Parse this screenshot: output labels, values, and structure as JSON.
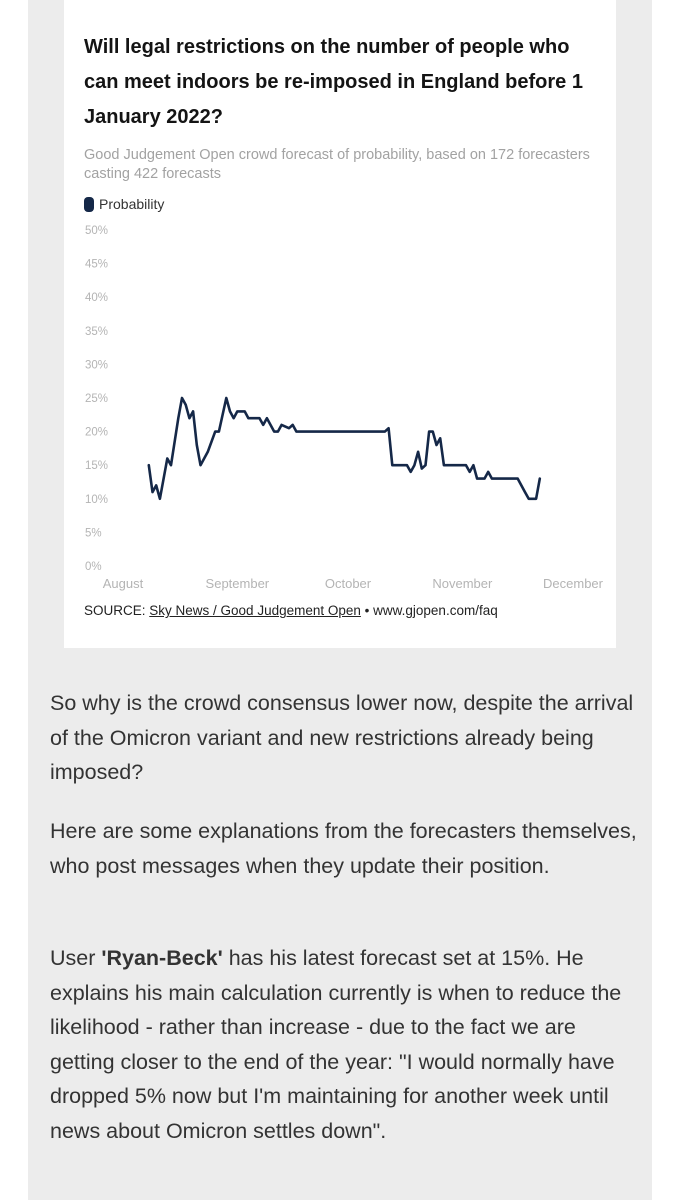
{
  "colors": {
    "line": "#152848",
    "axis_text": "#b4b4b4",
    "page_bg": "#ececec",
    "card_bg": "#ffffff",
    "body_text": "#333333"
  },
  "chart": {
    "title": "Will legal restrictions on the number of people who can meet indoors be re-imposed in England before 1 January 2022?",
    "subtitle": "Good Judgement Open crowd forecast of probability, based on 172 forecasters casting 422 forecasts",
    "source_label": "SOURCE:",
    "source_link": "Sky News / Good Judgement Open",
    "source_rest": "• www.gjopen.com/faq"
  },
  "chart_data": {
    "type": "line",
    "title": "Will legal restrictions on the number of people who can meet indoors be re-imposed in England before 1 January 2022?",
    "subtitle": "Good Judgement Open crowd forecast of probability, based on 172 forecasters casting 422 forecasts",
    "xlabel": "",
    "ylabel": "",
    "ylim": [
      0,
      50
    ],
    "yticks": [
      "0%",
      "5%",
      "10%",
      "15%",
      "20%",
      "25%",
      "30%",
      "35%",
      "40%",
      "45%",
      "50%"
    ],
    "xticks": [
      "August",
      "September",
      "October",
      "November",
      "December"
    ],
    "xlim": [
      "2021-08-01",
      "2021-12-01"
    ],
    "grid": false,
    "legend": "top-left",
    "series": [
      {
        "name": "Probability",
        "points": [
          [
            "2021-08-08",
            15
          ],
          [
            "2021-08-09",
            11
          ],
          [
            "2021-08-10",
            12
          ],
          [
            "2021-08-11",
            10
          ],
          [
            "2021-08-13",
            16
          ],
          [
            "2021-08-14",
            15
          ],
          [
            "2021-08-16",
            22
          ],
          [
            "2021-08-17",
            25
          ],
          [
            "2021-08-18",
            24
          ],
          [
            "2021-08-19",
            22
          ],
          [
            "2021-08-20",
            23
          ],
          [
            "2021-08-21",
            18
          ],
          [
            "2021-08-22",
            15
          ],
          [
            "2021-08-24",
            17
          ],
          [
            "2021-08-26",
            20
          ],
          [
            "2021-08-27",
            20
          ],
          [
            "2021-08-29",
            25
          ],
          [
            "2021-08-30",
            23
          ],
          [
            "2021-08-31",
            22
          ],
          [
            "2021-09-01",
            23
          ],
          [
            "2021-09-03",
            23
          ],
          [
            "2021-09-04",
            22
          ],
          [
            "2021-09-07",
            22
          ],
          [
            "2021-09-08",
            21
          ],
          [
            "2021-09-09",
            22
          ],
          [
            "2021-09-11",
            20
          ],
          [
            "2021-09-12",
            20
          ],
          [
            "2021-09-13",
            21
          ],
          [
            "2021-09-15",
            20.5
          ],
          [
            "2021-09-16",
            21
          ],
          [
            "2021-09-17",
            20
          ],
          [
            "2021-10-11",
            20
          ],
          [
            "2021-10-12",
            20.5
          ],
          [
            "2021-10-13",
            15
          ],
          [
            "2021-10-17",
            15
          ],
          [
            "2021-10-18",
            14
          ],
          [
            "2021-10-19",
            15
          ],
          [
            "2021-10-20",
            17
          ],
          [
            "2021-10-21",
            14.5
          ],
          [
            "2021-10-22",
            15
          ],
          [
            "2021-10-23",
            20
          ],
          [
            "2021-10-24",
            20
          ],
          [
            "2021-10-25",
            18
          ],
          [
            "2021-10-26",
            19
          ],
          [
            "2021-10-27",
            15
          ],
          [
            "2021-11-02",
            15
          ],
          [
            "2021-11-03",
            14
          ],
          [
            "2021-11-04",
            15
          ],
          [
            "2021-11-05",
            13
          ],
          [
            "2021-11-07",
            13
          ],
          [
            "2021-11-08",
            14
          ],
          [
            "2021-11-09",
            13
          ],
          [
            "2021-11-16",
            13
          ],
          [
            "2021-11-18",
            11
          ],
          [
            "2021-11-19",
            10
          ],
          [
            "2021-11-21",
            10
          ],
          [
            "2021-11-22",
            13
          ]
        ]
      }
    ]
  },
  "article": {
    "para1": "So why is the crowd consensus lower now, despite the arrival of the Omicron variant and new restrictions already being imposed?",
    "para2": "Here are some explanations from the forecasters themselves, who post messages when they update their position.",
    "para3_pre": "User ",
    "para3_user": "'Ryan-Beck'",
    "para3_post": " has his latest forecast set at 15%. He explains his main calculation currently is when to reduce the likelihood - rather than increase - due to the fact we are getting closer to the end of the year: \"I would normally have dropped 5% now but I'm maintaining for another week until news about Omicron settles down\"."
  }
}
